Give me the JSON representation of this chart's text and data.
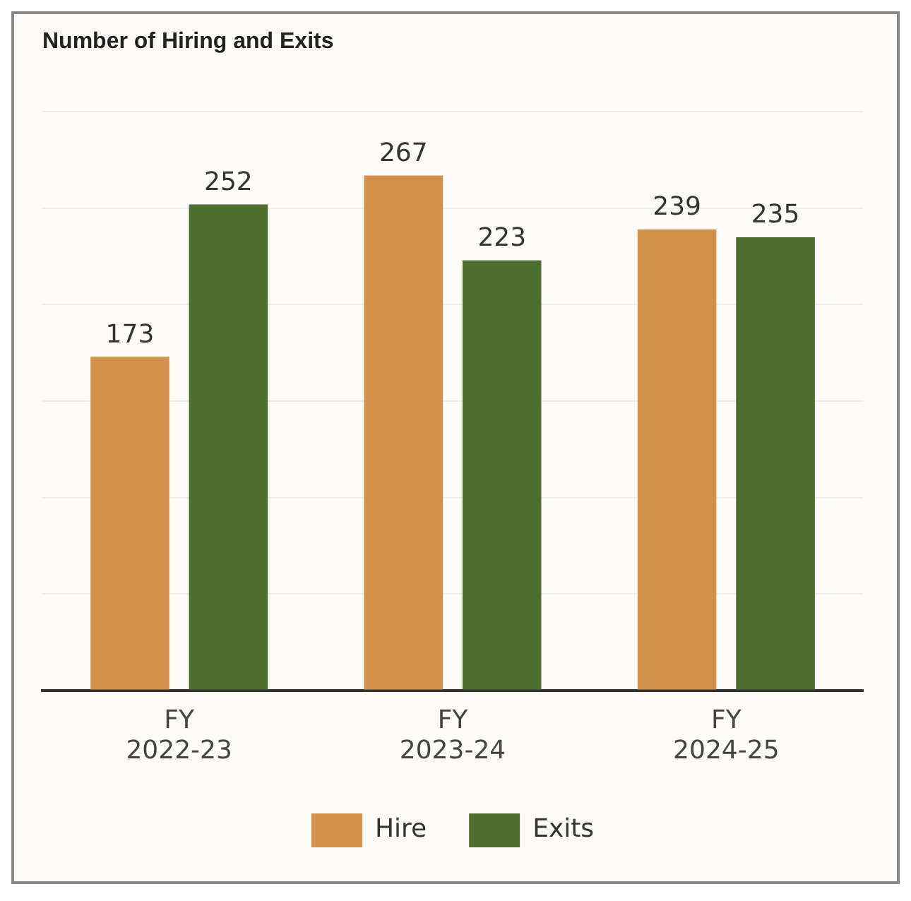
{
  "chart_data": {
    "type": "bar",
    "title": "Number of Hiring and Exits",
    "categories": [
      "FY 2022-23",
      "FY 2023-24",
      "FY 2024-25"
    ],
    "series": [
      {
        "name": "Hire",
        "color": "#d4914a",
        "values": [
          173,
          267,
          239
        ]
      },
      {
        "name": "Exits",
        "color": "#4d6e2c",
        "values": [
          252,
          223,
          235
        ]
      }
    ],
    "ylim": [
      0,
      300
    ],
    "yticks": [
      {
        "value": 0,
        "label": null
      },
      {
        "value": 50,
        "label": null
      },
      {
        "value": 100,
        "label": null
      },
      {
        "value": 150,
        "label": null
      },
      {
        "value": 200,
        "label": null
      },
      {
        "value": 250,
        "label": null
      },
      {
        "value": 300,
        "label": null
      }
    ],
    "grid": "y",
    "tick_labels": "x",
    "legend": "bottom",
    "data_labels": true
  }
}
